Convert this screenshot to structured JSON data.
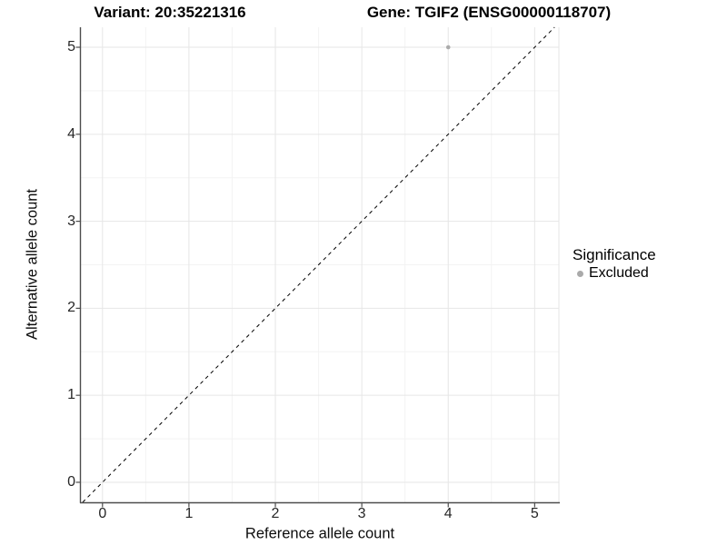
{
  "titles": {
    "variant": "Variant: 20:35221316",
    "gene": "Gene: TGIF2 (ENSG00000118707)"
  },
  "chart_data": {
    "type": "scatter",
    "title": "Variant: 20:35221316 | Gene: TGIF2 (ENSG00000118707)",
    "xlabel": "Reference allele count",
    "ylabel": "Alternative allele count",
    "x_ticks": [
      0,
      1,
      2,
      3,
      4,
      5
    ],
    "y_ticks": [
      0,
      1,
      2,
      3,
      4,
      5
    ],
    "xlim": [
      -0.25,
      5.28
    ],
    "ylim": [
      -0.23,
      5.23
    ],
    "grid": {
      "major": true,
      "minor": true,
      "minor_step": 0.5
    },
    "series": [
      {
        "name": "Excluded",
        "color": "#ababab",
        "point_radius": 2.3,
        "points": [
          {
            "x": 4,
            "y": 5
          }
        ]
      }
    ],
    "reference_line": {
      "kind": "identity",
      "linetype": "dashed",
      "color": "#000000"
    },
    "legend": {
      "title": "Significance",
      "position": "right",
      "items": [
        {
          "label": "Excluded",
          "color": "#aaaaaa"
        }
      ]
    },
    "colors": {
      "panel_background": "#ffffff",
      "grid_major": "#e6e6e6",
      "grid_minor": "#f3f3f3",
      "axis_line": "#4d4d4d",
      "tick_mark": "#4d4d4d",
      "tick_label": "#262626"
    }
  }
}
